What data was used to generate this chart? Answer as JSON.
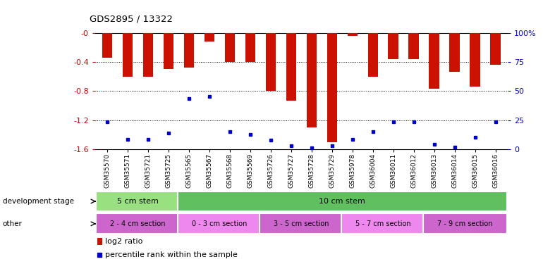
{
  "title": "GDS2895 / 13322",
  "samples": [
    "GSM35570",
    "GSM35571",
    "GSM35721",
    "GSM35725",
    "GSM35565",
    "GSM35567",
    "GSM35568",
    "GSM35569",
    "GSM35726",
    "GSM35727",
    "GSM35728",
    "GSM35729",
    "GSM35978",
    "GSM36004",
    "GSM36011",
    "GSM36012",
    "GSM36013",
    "GSM36014",
    "GSM36015",
    "GSM36016"
  ],
  "log2_values": [
    -0.34,
    -0.6,
    -0.6,
    -0.5,
    -0.48,
    -0.12,
    -0.4,
    -0.4,
    -0.8,
    -0.93,
    -1.3,
    -1.5,
    -0.04,
    -0.6,
    -0.36,
    -0.36,
    -0.77,
    -0.53,
    -0.74,
    -0.44
  ],
  "blue_dot_y": [
    -1.22,
    -1.47,
    -1.47,
    -1.38,
    -0.9,
    -0.87,
    -1.36,
    -1.4,
    -1.48,
    -1.55,
    -1.58,
    -1.55,
    -1.47,
    -1.36,
    -1.22,
    -1.22,
    -1.53,
    -1.57,
    -1.44,
    -1.22
  ],
  "ylim_left": [
    -1.6,
    0.0
  ],
  "yticks_left": [
    -1.6,
    -1.2,
    -0.8,
    -0.4,
    0.0
  ],
  "yticklabels_left": [
    "-1.6",
    "-1.2",
    "-0.8",
    "-0.4",
    "-0"
  ],
  "yticks_right": [
    0,
    25,
    50,
    75,
    100
  ],
  "yticklabels_right": [
    "0",
    "25",
    "50",
    "75",
    "100%"
  ],
  "dev_stage_groups": [
    {
      "label": "5 cm stem",
      "start": 0,
      "end": 4,
      "color": "#98E080"
    },
    {
      "label": "10 cm stem",
      "start": 4,
      "end": 20,
      "color": "#60C060"
    }
  ],
  "other_groups": [
    {
      "label": "2 - 4 cm section",
      "start": 0,
      "end": 4,
      "color": "#CC66CC"
    },
    {
      "label": "0 - 3 cm section",
      "start": 4,
      "end": 8,
      "color": "#EE88EE"
    },
    {
      "label": "3 - 5 cm section",
      "start": 8,
      "end": 12,
      "color": "#CC66CC"
    },
    {
      "label": "5 - 7 cm section",
      "start": 12,
      "end": 16,
      "color": "#EE88EE"
    },
    {
      "label": "7 - 9 cm section",
      "start": 16,
      "end": 20,
      "color": "#CC66CC"
    }
  ],
  "bar_color": "#CC1100",
  "dot_color": "#0000CC",
  "left_axis_color": "#CC0000",
  "right_axis_color": "#0000CC",
  "bg_color": "#FFFFFF",
  "left_label_dev": "development stage",
  "left_label_oth": "other",
  "legend_red": "log2 ratio",
  "legend_blue": "percentile rank within the sample"
}
